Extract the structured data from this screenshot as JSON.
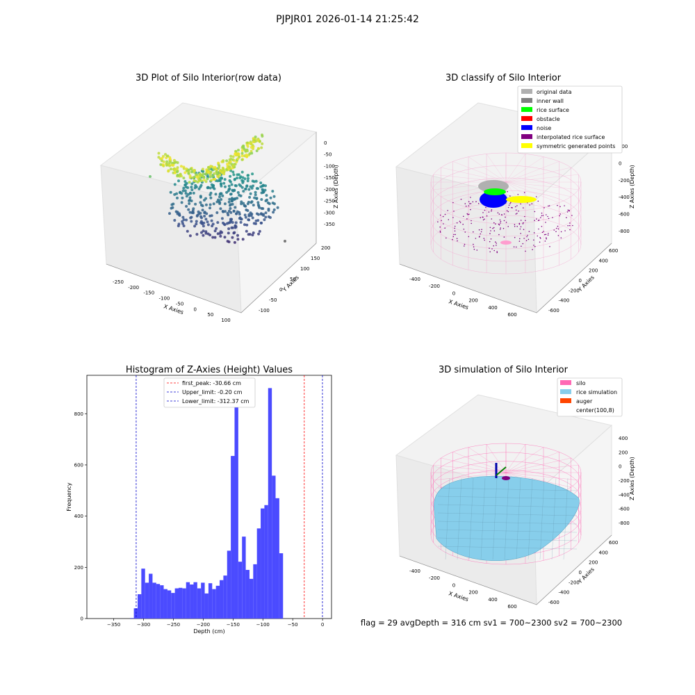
{
  "figure_title": "PJPJR01 2026-01-14 21:25:42",
  "footer_text": "flag = 29  avgDepth = 316 cm  sv1 = 700~2300  sv2 = 700~2300",
  "colors": {
    "histogram_bar": "#4b4bff",
    "first_peak_line": "#ff0000",
    "limit_lines": "#0000cc",
    "silo_wireframe": "#ff69b4",
    "rice_simulation": "#87ceeb"
  },
  "chart_data": [
    {
      "type": "scatter",
      "projection": "3d",
      "title": "3D Plot of Silo Interior(row data)",
      "xlabel": "X Axies",
      "ylabel": "Y Axies",
      "zlabel": "Z Axies (Depth)",
      "xticks": [
        "-250",
        "-200",
        "-150",
        "-100",
        "-50",
        "0",
        "50",
        "100"
      ],
      "yticks": [
        "-100",
        "-50",
        "0",
        "50",
        "100",
        "150",
        "200"
      ],
      "zticks": [
        "0",
        "-50",
        "-100",
        "-150",
        "-200",
        "-250",
        "-300",
        "-350"
      ],
      "colormap": "viridis"
    },
    {
      "type": "scatter",
      "projection": "3d",
      "title": "3D classify of Silo Interior",
      "xlabel": "X Axies",
      "ylabel": "Y Axies",
      "zlabel": "Z Axies (Depth)",
      "xticks": [
        "-400",
        "-200",
        "0",
        "200",
        "400",
        "600"
      ],
      "yticks": [
        "-600",
        "-400",
        "-200",
        "0",
        "200",
        "400",
        "600"
      ],
      "zticks": [
        "200",
        "0",
        "-200",
        "-400",
        "-600",
        "-800"
      ],
      "legend_location": "top-right",
      "legend": [
        {
          "label": "original data",
          "color": "#b0b0b0"
        },
        {
          "label": "inner wall",
          "color": "#808080"
        },
        {
          "label": "rice surface",
          "color": "#00ff00"
        },
        {
          "label": "obstacle",
          "color": "#ff0000"
        },
        {
          "label": "noise",
          "color": "#0000ff"
        },
        {
          "label": "interpolated rice surface",
          "color": "#800080"
        },
        {
          "label": "symmetric generated points",
          "color": "#ffff00"
        }
      ]
    },
    {
      "type": "bar",
      "title": "Histogram of Z-Axies (Height) Values",
      "xlabel": "Depth (cm)",
      "ylabel": "Frequency",
      "xlim": [
        -395,
        15
      ],
      "ylim": [
        0,
        950
      ],
      "xticks": [
        -350,
        -300,
        -250,
        -200,
        -150,
        -100,
        -50,
        0
      ],
      "yticks": [
        0,
        200,
        400,
        600,
        800
      ],
      "bin_width": 6.25,
      "bin_start": -322.5,
      "values": [
        2,
        40,
        95,
        195,
        140,
        175,
        140,
        135,
        130,
        115,
        110,
        100,
        118,
        120,
        118,
        142,
        133,
        142,
        118,
        140,
        98,
        138,
        115,
        128,
        150,
        168,
        265,
        635,
        890,
        222,
        320,
        190,
        155,
        212,
        352,
        430,
        443,
        900,
        558,
        470,
        255
      ],
      "vlines": [
        {
          "label": "first_peak: -30.66 cm",
          "x": -30.66,
          "color": "#ff0000"
        },
        {
          "label": "Upper_limit: -0.20 cm",
          "x": -0.2,
          "color": "#0000cc"
        },
        {
          "label": "Lower_limit: -312.37 cm",
          "x": -312.37,
          "color": "#0000cc"
        }
      ],
      "legend_location": "top-center"
    },
    {
      "type": "surface",
      "projection": "3d",
      "title": "3D simulation of Silo Interior",
      "xlabel": "X Axies",
      "ylabel": "Y Axies",
      "zlabel": "Z Axies (Depth)",
      "xticks": [
        "-400",
        "-200",
        "0",
        "200",
        "400",
        "600"
      ],
      "yticks": [
        "-600",
        "-400",
        "-200",
        "0",
        "200",
        "400",
        "600"
      ],
      "zticks": [
        "400",
        "200",
        "0",
        "-200",
        "-400",
        "-600",
        "-800"
      ],
      "legend_location": "top-right",
      "legend": [
        {
          "label": "silo",
          "color": "#ff69b4"
        },
        {
          "label": "rice simulation",
          "color": "#87ceeb"
        },
        {
          "label": "auger",
          "color": "#ff4500"
        },
        {
          "label": "center(100,8)",
          "color": "#ffffff"
        }
      ]
    }
  ]
}
